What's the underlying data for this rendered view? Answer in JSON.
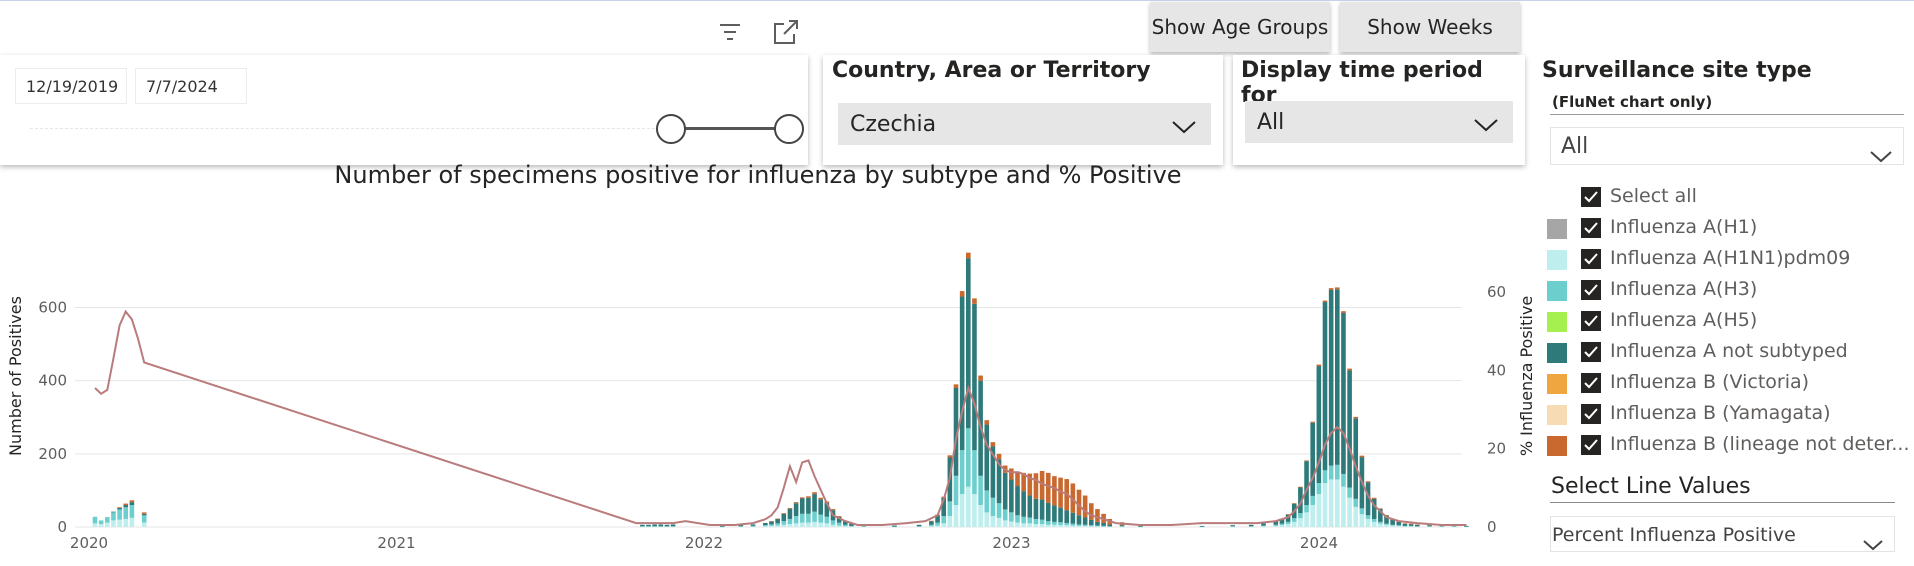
{
  "toolbar": {
    "filter_icon": "filter-icon",
    "expand_icon": "focus-mode-icon"
  },
  "buttons": {
    "age_groups": "Show Age Groups",
    "weeks": "Show Weeks"
  },
  "date_slicer": {
    "start": "12/19/2019",
    "end": "7/7/2024"
  },
  "country_slicer": {
    "title": "Country, Area or Territory",
    "value": "Czechia"
  },
  "period_slicer": {
    "title": "Display time period for",
    "value": "All"
  },
  "site_slicer": {
    "title": "Surveillance site type",
    "subtitle": "(FluNet chart only)",
    "value": "All"
  },
  "legend": {
    "select_all": "Select all",
    "items": [
      {
        "label": "Influenza A(H1)",
        "color": "#a6a6a6"
      },
      {
        "label": "Influenza A(H1N1)pdm09",
        "color": "#bfeeee"
      },
      {
        "label": "Influenza A(H3)",
        "color": "#6dcfcd"
      },
      {
        "label": "Influenza A(H5)",
        "color": "#a5f04e"
      },
      {
        "label": "Influenza A not subtyped",
        "color": "#2e7a7a"
      },
      {
        "label": "Influenza B (Victoria)",
        "color": "#f0a640"
      },
      {
        "label": "Influenza B (Yamagata)",
        "color": "#f7dbb4"
      },
      {
        "label": "Influenza B (lineage not deter...",
        "color": "#c9682f"
      }
    ]
  },
  "line_select": {
    "title": "Select Line Values",
    "value": "Percent Influenza Positive"
  },
  "chart_data": {
    "type": "bar",
    "title": "Number of specimens positive for influenza by subtype and % Positive",
    "ylabel": "Number of Positives",
    "y2label": "% Influenza Positive",
    "ylim": [
      0,
      750
    ],
    "y2lim": [
      0,
      65
    ],
    "yticks": [
      0,
      200,
      400,
      600
    ],
    "y2ticks": [
      0,
      20,
      40,
      60
    ],
    "xticks": [
      {
        "label": "2020",
        "x": 2020.0
      },
      {
        "label": "2021",
        "x": 2021.0
      },
      {
        "label": "2022",
        "x": 2022.0
      },
      {
        "label": "2023",
        "x": 2023.0
      },
      {
        "label": "2024",
        "x": 2024.0
      }
    ],
    "stack_order": [
      "Influenza A(H1N1)pdm09",
      "Influenza A(H3)",
      "Influenza A not subtyped",
      "Influenza B (lineage not deter..."
    ],
    "bars": [
      [
        2020.0,
        10,
        18,
        0,
        0
      ],
      [
        2020.02,
        8,
        10,
        0,
        0
      ],
      [
        2020.04,
        12,
        15,
        0,
        0
      ],
      [
        2020.06,
        18,
        22,
        2,
        0
      ],
      [
        2020.08,
        20,
        28,
        4,
        2
      ],
      [
        2020.1,
        22,
        32,
        6,
        4
      ],
      [
        2020.12,
        25,
        35,
        8,
        5
      ],
      [
        2020.14,
        0,
        0,
        0,
        0
      ],
      [
        2020.16,
        12,
        20,
        4,
        4
      ],
      [
        2021.78,
        1,
        1,
        4,
        0
      ],
      [
        2021.8,
        1,
        1,
        4,
        0
      ],
      [
        2021.82,
        1,
        1,
        5,
        0
      ],
      [
        2021.84,
        1,
        1,
        5,
        0
      ],
      [
        2021.86,
        1,
        1,
        4,
        0
      ],
      [
        2021.88,
        1,
        1,
        5,
        0
      ],
      [
        2022.04,
        0,
        1,
        3,
        0
      ],
      [
        2022.1,
        1,
        1,
        4,
        0
      ],
      [
        2022.14,
        1,
        2,
        4,
        0
      ],
      [
        2022.18,
        2,
        3,
        6,
        0
      ],
      [
        2022.2,
        3,
        4,
        8,
        1
      ],
      [
        2022.22,
        4,
        6,
        12,
        1
      ],
      [
        2022.24,
        6,
        10,
        20,
        2
      ],
      [
        2022.26,
        8,
        14,
        28,
        2
      ],
      [
        2022.28,
        10,
        20,
        35,
        3
      ],
      [
        2022.3,
        12,
        24,
        42,
        3
      ],
      [
        2022.32,
        12,
        24,
        44,
        4
      ],
      [
        2022.34,
        14,
        28,
        48,
        5
      ],
      [
        2022.36,
        12,
        22,
        42,
        4
      ],
      [
        2022.38,
        10,
        18,
        38,
        4
      ],
      [
        2022.4,
        6,
        12,
        28,
        3
      ],
      [
        2022.42,
        4,
        8,
        16,
        2
      ],
      [
        2022.44,
        2,
        4,
        10,
        1
      ],
      [
        2022.46,
        1,
        2,
        6,
        1
      ],
      [
        2022.5,
        1,
        1,
        3,
        0
      ],
      [
        2022.6,
        0,
        1,
        3,
        0
      ],
      [
        2022.68,
        1,
        1,
        4,
        0
      ],
      [
        2022.72,
        2,
        4,
        10,
        1
      ],
      [
        2022.74,
        4,
        8,
        20,
        2
      ],
      [
        2022.76,
        10,
        20,
        50,
        3
      ],
      [
        2022.78,
        30,
        40,
        120,
        6
      ],
      [
        2022.8,
        60,
        80,
        240,
        10
      ],
      [
        2022.82,
        90,
        120,
        420,
        15
      ],
      [
        2022.84,
        110,
        160,
        465,
        15
      ],
      [
        2022.86,
        90,
        120,
        400,
        15
      ],
      [
        2022.88,
        60,
        80,
        260,
        14
      ],
      [
        2022.9,
        40,
        60,
        180,
        12
      ],
      [
        2022.92,
        30,
        50,
        140,
        12
      ],
      [
        2022.94,
        25,
        40,
        120,
        15
      ],
      [
        2022.96,
        18,
        30,
        100,
        20
      ],
      [
        2022.98,
        15,
        25,
        90,
        30
      ],
      [
        2023.0,
        12,
        20,
        80,
        40
      ],
      [
        2023.02,
        10,
        18,
        70,
        50
      ],
      [
        2023.04,
        10,
        16,
        60,
        60
      ],
      [
        2023.06,
        8,
        14,
        55,
        70
      ],
      [
        2023.08,
        8,
        12,
        55,
        78
      ],
      [
        2023.1,
        6,
        10,
        50,
        82
      ],
      [
        2023.12,
        6,
        8,
        45,
        80
      ],
      [
        2023.14,
        5,
        8,
        40,
        82
      ],
      [
        2023.16,
        5,
        6,
        35,
        85
      ],
      [
        2023.18,
        4,
        5,
        30,
        80
      ],
      [
        2023.2,
        3,
        4,
        25,
        70
      ],
      [
        2023.22,
        3,
        3,
        20,
        60
      ],
      [
        2023.24,
        2,
        3,
        15,
        45
      ],
      [
        2023.26,
        2,
        2,
        10,
        35
      ],
      [
        2023.28,
        1,
        2,
        8,
        25
      ],
      [
        2023.3,
        1,
        1,
        5,
        15
      ],
      [
        2023.34,
        1,
        1,
        3,
        8
      ],
      [
        2023.4,
        0,
        1,
        2,
        3
      ],
      [
        2023.6,
        0,
        1,
        2,
        0
      ],
      [
        2023.7,
        1,
        1,
        3,
        0
      ],
      [
        2023.76,
        1,
        1,
        4,
        0
      ],
      [
        2023.8,
        2,
        2,
        6,
        0
      ],
      [
        2023.84,
        3,
        3,
        10,
        0
      ],
      [
        2023.86,
        5,
        4,
        14,
        0
      ],
      [
        2023.88,
        8,
        6,
        20,
        1
      ],
      [
        2023.9,
        14,
        10,
        40,
        1
      ],
      [
        2023.92,
        24,
        14,
        70,
        2
      ],
      [
        2023.94,
        40,
        20,
        120,
        2
      ],
      [
        2023.96,
        60,
        25,
        200,
        3
      ],
      [
        2023.98,
        90,
        30,
        320,
        4
      ],
      [
        2024.0,
        120,
        35,
        460,
        4
      ],
      [
        2024.02,
        130,
        38,
        480,
        5
      ],
      [
        2024.04,
        130,
        40,
        480,
        5
      ],
      [
        2024.06,
        110,
        35,
        440,
        5
      ],
      [
        2024.08,
        80,
        28,
        320,
        5
      ],
      [
        2024.1,
        55,
        22,
        220,
        4
      ],
      [
        2024.12,
        35,
        16,
        140,
        4
      ],
      [
        2024.14,
        22,
        10,
        90,
        3
      ],
      [
        2024.16,
        14,
        8,
        55,
        3
      ],
      [
        2024.18,
        9,
        5,
        35,
        2
      ],
      [
        2024.2,
        6,
        3,
        22,
        2
      ],
      [
        2024.22,
        4,
        2,
        14,
        1
      ],
      [
        2024.24,
        3,
        2,
        9,
        1
      ],
      [
        2024.26,
        2,
        1,
        6,
        1
      ],
      [
        2024.28,
        2,
        1,
        5,
        1
      ],
      [
        2024.3,
        1,
        1,
        4,
        1
      ],
      [
        2024.34,
        1,
        1,
        3,
        0
      ],
      [
        2024.38,
        1,
        1,
        3,
        0
      ],
      [
        2024.42,
        1,
        1,
        2,
        0
      ],
      [
        2024.46,
        0,
        1,
        2,
        0
      ]
    ],
    "line": [
      [
        2020.0,
        35.5
      ],
      [
        2020.02,
        34.0
      ],
      [
        2020.04,
        35.0
      ],
      [
        2020.06,
        43.0
      ],
      [
        2020.08,
        51.5
      ],
      [
        2020.1,
        55.0
      ],
      [
        2020.12,
        53.0
      ],
      [
        2020.14,
        48.0
      ],
      [
        2020.16,
        42.0
      ],
      [
        2021.76,
        1.0
      ],
      [
        2021.8,
        1.0
      ],
      [
        2021.84,
        1.0
      ],
      [
        2021.88,
        1.0
      ],
      [
        2021.92,
        1.5
      ],
      [
        2022.0,
        0.5
      ],
      [
        2022.08,
        0.5
      ],
      [
        2022.14,
        1.0
      ],
      [
        2022.18,
        2.0
      ],
      [
        2022.2,
        3.0
      ],
      [
        2022.22,
        5.0
      ],
      [
        2022.24,
        10.0
      ],
      [
        2022.26,
        15.5
      ],
      [
        2022.28,
        11.5
      ],
      [
        2022.3,
        16.5
      ],
      [
        2022.32,
        17.0
      ],
      [
        2022.34,
        13.0
      ],
      [
        2022.36,
        9.5
      ],
      [
        2022.38,
        6.0
      ],
      [
        2022.4,
        3.0
      ],
      [
        2022.44,
        1.5
      ],
      [
        2022.48,
        0.5
      ],
      [
        2022.56,
        0.5
      ],
      [
        2022.64,
        1.0
      ],
      [
        2022.7,
        1.5
      ],
      [
        2022.74,
        3.0
      ],
      [
        2022.76,
        7.0
      ],
      [
        2022.78,
        12.5
      ],
      [
        2022.8,
        22.5
      ],
      [
        2022.82,
        29.5
      ],
      [
        2022.84,
        35.5
      ],
      [
        2022.86,
        31.5
      ],
      [
        2022.88,
        25.5
      ],
      [
        2022.9,
        21.0
      ],
      [
        2022.92,
        18.5
      ],
      [
        2022.94,
        16.0
      ],
      [
        2022.96,
        14.5
      ],
      [
        2022.98,
        14.0
      ],
      [
        2023.0,
        14.0
      ],
      [
        2023.02,
        13.5
      ],
      [
        2023.04,
        12.5
      ],
      [
        2023.06,
        12.0
      ],
      [
        2023.08,
        11.0
      ],
      [
        2023.1,
        10.5
      ],
      [
        2023.12,
        10.0
      ],
      [
        2023.14,
        9.0
      ],
      [
        2023.16,
        8.5
      ],
      [
        2023.18,
        7.0
      ],
      [
        2023.2,
        5.5
      ],
      [
        2023.22,
        4.0
      ],
      [
        2023.24,
        3.0
      ],
      [
        2023.28,
        2.0
      ],
      [
        2023.32,
        1.0
      ],
      [
        2023.4,
        0.5
      ],
      [
        2023.5,
        0.5
      ],
      [
        2023.6,
        1.0
      ],
      [
        2023.7,
        1.0
      ],
      [
        2023.78,
        1.0
      ],
      [
        2023.84,
        1.5
      ],
      [
        2023.88,
        2.5
      ],
      [
        2023.9,
        4.0
      ],
      [
        2023.92,
        6.0
      ],
      [
        2023.94,
        9.5
      ],
      [
        2023.96,
        12.5
      ],
      [
        2023.98,
        16.5
      ],
      [
        2024.0,
        21.0
      ],
      [
        2024.02,
        24.0
      ],
      [
        2024.04,
        25.5
      ],
      [
        2024.06,
        24.0
      ],
      [
        2024.08,
        20.0
      ],
      [
        2024.1,
        15.5
      ],
      [
        2024.12,
        11.5
      ],
      [
        2024.14,
        8.0
      ],
      [
        2024.16,
        5.5
      ],
      [
        2024.18,
        4.0
      ],
      [
        2024.2,
        2.5
      ],
      [
        2024.24,
        1.5
      ],
      [
        2024.3,
        1.0
      ],
      [
        2024.38,
        0.5
      ],
      [
        2024.46,
        0.5
      ]
    ]
  }
}
